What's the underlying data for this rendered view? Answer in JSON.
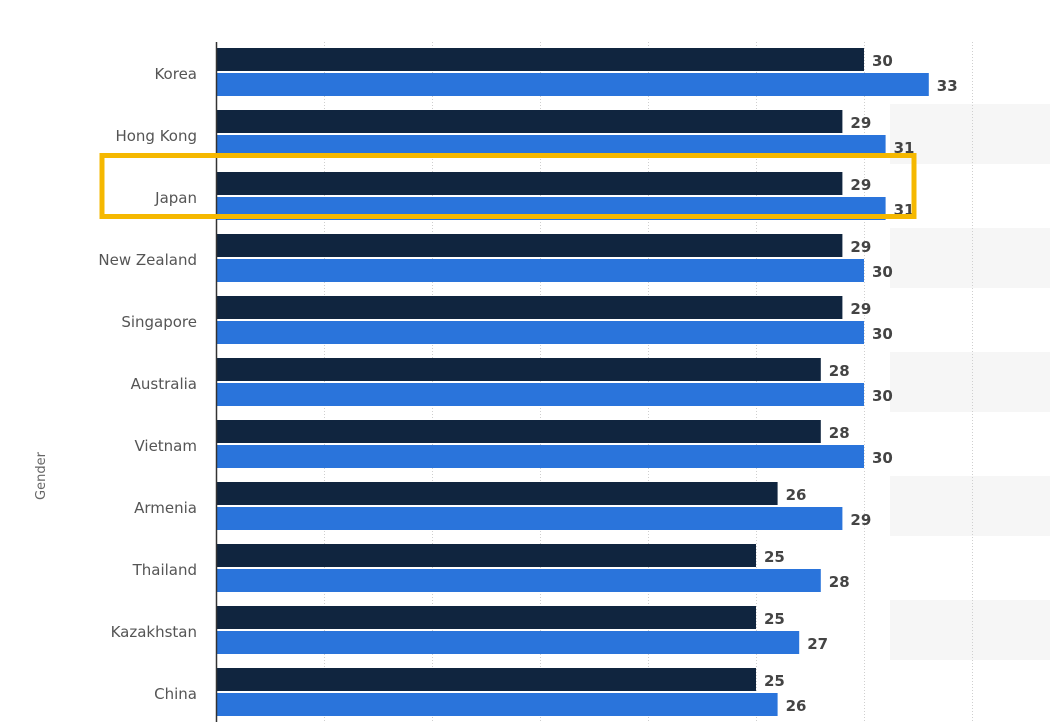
{
  "chart_data": {
    "type": "bar",
    "orientation": "horizontal",
    "ylabel": "Gender",
    "categories": [
      "Korea",
      "Hong Kong",
      "Japan",
      "New Zealand",
      "Singapore",
      "Australia",
      "Vietnam",
      "Armenia",
      "Thailand",
      "Kazakhstan",
      "China"
    ],
    "series": [
      {
        "values": [
          30,
          29,
          29,
          29,
          29,
          28,
          28,
          26,
          25,
          25,
          25
        ],
        "color": "#10253f"
      },
      {
        "values": [
          33,
          31,
          31,
          30,
          30,
          30,
          30,
          29,
          28,
          27,
          26
        ],
        "color": "#2a74db"
      }
    ],
    "xlim": [
      0,
      35
    ],
    "grid": true,
    "highlight": {
      "category": "Japan",
      "color": "#f5b800"
    }
  }
}
